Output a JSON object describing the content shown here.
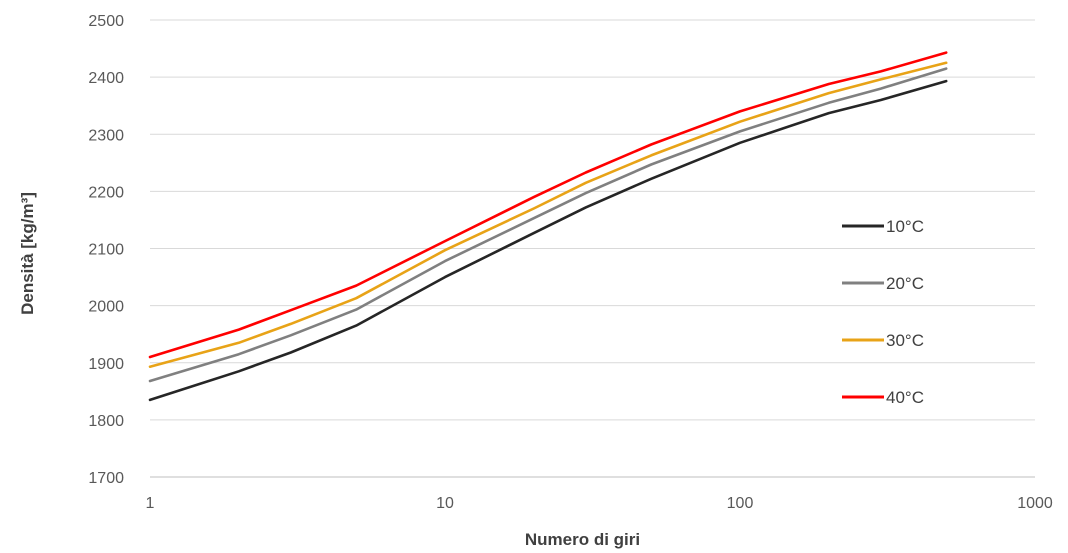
{
  "chart_data": {
    "type": "line",
    "xlabel": "Numero di giri",
    "ylabel": "Densità [kg/m³]",
    "x_scale": "log",
    "xlim": [
      1,
      1000
    ],
    "ylim": [
      1700,
      2500
    ],
    "x_ticks": [
      1,
      10,
      100,
      1000
    ],
    "x_tick_labels": [
      "1",
      "10",
      "100",
      "1000"
    ],
    "y_ticks": [
      1700,
      1800,
      1900,
      2000,
      2100,
      2200,
      2300,
      2400,
      2500
    ],
    "y_tick_labels": [
      "1700",
      "1800",
      "1900",
      "2000",
      "2100",
      "2200",
      "2300",
      "2400",
      "2500"
    ],
    "grid": "horizontal",
    "legend_position": "right",
    "x": [
      1,
      2,
      3,
      5,
      10,
      20,
      30,
      50,
      100,
      200,
      300,
      500
    ],
    "series": [
      {
        "name": "10°C",
        "color": "#262626",
        "values": [
          1835,
          1885,
          1918,
          1965,
          2050,
          2127,
          2172,
          2222,
          2285,
          2337,
          2360,
          2393
        ]
      },
      {
        "name": "20°C",
        "color": "#808080",
        "values": [
          1868,
          1915,
          1948,
          1993,
          2078,
          2153,
          2197,
          2247,
          2305,
          2355,
          2380,
          2415
        ]
      },
      {
        "name": "30°C",
        "color": "#E8A317",
        "values": [
          1893,
          1935,
          1968,
          2013,
          2097,
          2170,
          2215,
          2263,
          2322,
          2372,
          2396,
          2425
        ]
      },
      {
        "name": "40°C",
        "color": "#FF0000",
        "values": [
          1910,
          1958,
          1992,
          2035,
          2113,
          2190,
          2233,
          2282,
          2340,
          2388,
          2410,
          2443
        ]
      }
    ]
  }
}
